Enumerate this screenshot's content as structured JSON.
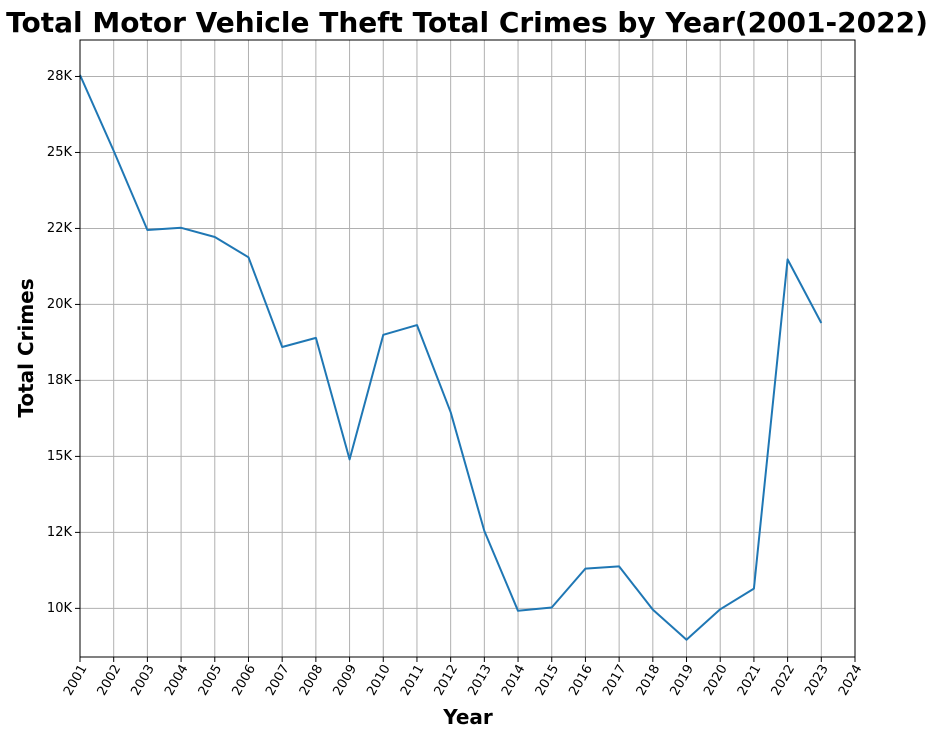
{
  "chart_data": {
    "type": "line",
    "title": "Total Motor Vehicle Theft Total Crimes by Year(2001-2022)",
    "xlabel": "Year",
    "ylabel": "Total Crimes",
    "xlim": [
      2001,
      2024
    ],
    "ylim": [
      8400,
      28700
    ],
    "grid": true,
    "line_color": "#1f77b4",
    "x_ticks": [
      2001,
      2002,
      2003,
      2004,
      2005,
      2006,
      2007,
      2008,
      2009,
      2010,
      2011,
      2012,
      2013,
      2014,
      2015,
      2016,
      2017,
      2018,
      2019,
      2020,
      2021,
      2022,
      2023,
      2024
    ],
    "x_tick_labels": [
      "2001",
      "2002",
      "2003",
      "2004",
      "2005",
      "2006",
      "2007",
      "2008",
      "2009",
      "2010",
      "2011",
      "2012",
      "2013",
      "2014",
      "2015",
      "2016",
      "2017",
      "2018",
      "2019",
      "2020",
      "2021",
      "2022",
      "2023",
      "2024"
    ],
    "y_ticks": [
      10000,
      12500,
      15000,
      17500,
      20000,
      22500,
      25000,
      27500
    ],
    "y_tick_labels": [
      "10K",
      "12K",
      "15K",
      "18K",
      "20K",
      "22K",
      "25K",
      "28K"
    ],
    "series": [
      {
        "x": [
          2001,
          2002,
          2003,
          2004,
          2005,
          2006,
          2007,
          2008,
          2009,
          2010,
          2011,
          2012,
          2013,
          2014,
          2015,
          2016,
          2017,
          2018,
          2019,
          2020,
          2021,
          2022,
          2023
        ],
        "values": [
          27550,
          25050,
          22450,
          22520,
          22220,
          21550,
          18600,
          18900,
          14900,
          19000,
          19320,
          16450,
          12550,
          9920,
          10030,
          11310,
          11380,
          9960,
          8970,
          9970,
          10650,
          21480,
          19390
        ]
      }
    ]
  }
}
